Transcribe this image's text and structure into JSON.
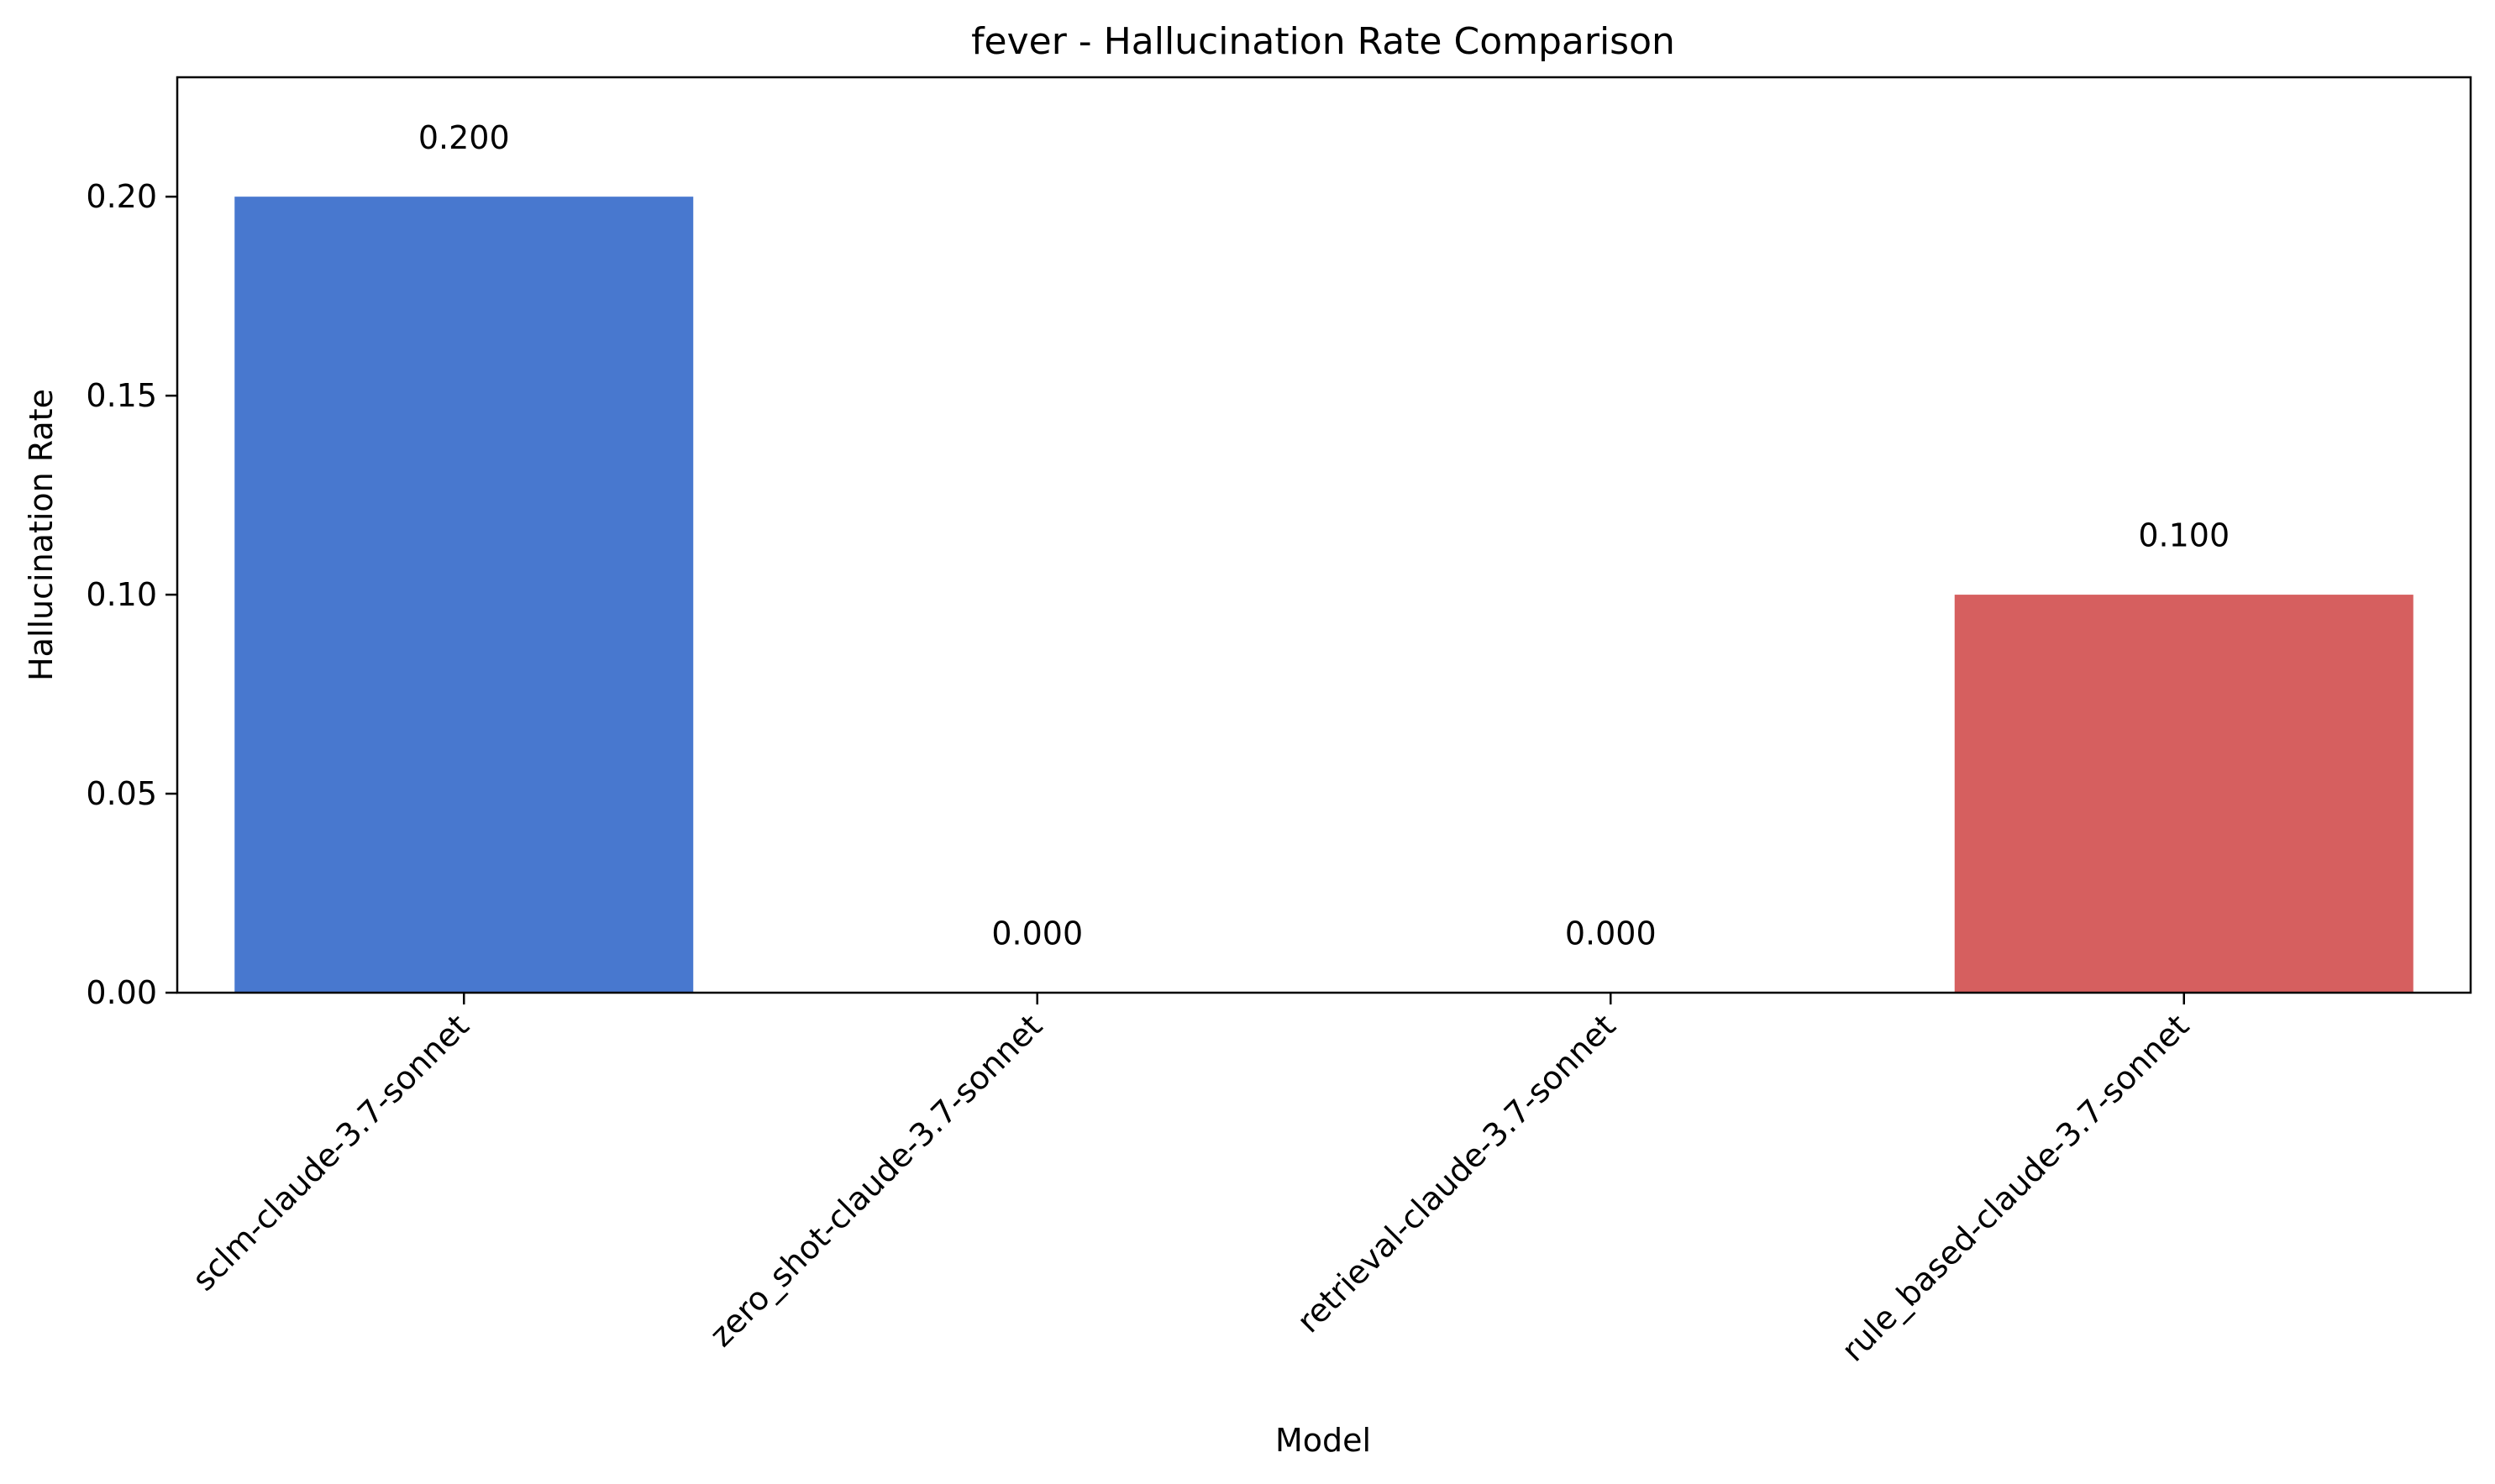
{
  "chart_data": {
    "type": "bar",
    "title": "fever - Hallucination Rate Comparison",
    "xlabel": "Model",
    "ylabel": "Hallucination Rate",
    "categories": [
      "sclm-claude-3.7-sonnet",
      "zero_shot-claude-3.7-sonnet",
      "retrieval-claude-3.7-sonnet",
      "rule_based-claude-3.7-sonnet"
    ],
    "values": [
      0.2,
      0.0,
      0.0,
      0.1
    ],
    "value_labels": [
      "0.200",
      "0.000",
      "0.000",
      "0.100"
    ],
    "bar_colors": [
      "#4878cf",
      "#6acc65",
      "#b47cc7",
      "#d65f5f"
    ],
    "ylim": [
      0,
      0.23
    ],
    "yticks": [
      0.0,
      0.05,
      0.1,
      0.15,
      0.2
    ],
    "ytick_labels": [
      "0.00",
      "0.05",
      "0.10",
      "0.15",
      "0.20"
    ],
    "grid": false,
    "legend": "none"
  }
}
